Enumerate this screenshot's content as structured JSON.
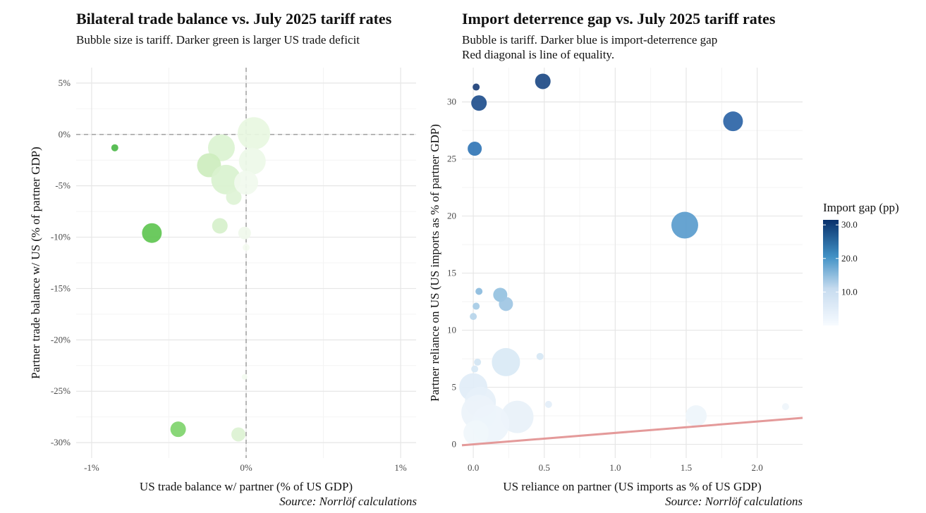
{
  "chart_data": [
    {
      "type": "scatter",
      "title": "Bilateral trade balance vs. July 2025 tariff rates",
      "subtitle": "Bubble size is tariff. Darker green is larger US trade deficit",
      "xlabel": "US trade balance w/ partner (% of US GDP)",
      "ylabel": "Partner trade balance w/ US (% of partner GDP)",
      "source": "Source: Norrlöf calculations",
      "xlim": [
        -1.1,
        1.1
      ],
      "ylim": [
        -31.5,
        6.5
      ],
      "xticks": [
        {
          "v": -1,
          "label": "-1%"
        },
        {
          "v": 0,
          "label": "0%"
        },
        {
          "v": 1,
          "label": "1%"
        }
      ],
      "yticks": [
        {
          "v": 5,
          "label": "5%"
        },
        {
          "v": 0,
          "label": "0%"
        },
        {
          "v": -5,
          "label": "-5%"
        },
        {
          "v": -10,
          "label": "-10%"
        },
        {
          "v": -15,
          "label": "-15%"
        },
        {
          "v": -20,
          "label": "-20%"
        },
        {
          "v": -25,
          "label": "-25%"
        },
        {
          "v": -30,
          "label": "-30%"
        }
      ],
      "reference_lines": {
        "x": 0,
        "y": 0,
        "style": "dashed"
      },
      "grid": true,
      "points": [
        {
          "x": -0.85,
          "y": -1.3,
          "size": 5,
          "color": "#4cb848"
        },
        {
          "x": -0.61,
          "y": -9.6,
          "size": 14,
          "color": "#5fc651"
        },
        {
          "x": -0.44,
          "y": -28.7,
          "size": 11,
          "color": "#7fd46c"
        },
        {
          "x": -0.05,
          "y": -29.2,
          "size": 10,
          "color": "#dcf2d2"
        },
        {
          "x": -0.17,
          "y": -8.9,
          "size": 11,
          "color": "#d6f0cb"
        },
        {
          "x": -0.16,
          "y": -1.3,
          "size": 19,
          "color": "#dbf3d1"
        },
        {
          "x": -0.24,
          "y": -3.0,
          "size": 17,
          "color": "#cdedbe"
        },
        {
          "x": -0.13,
          "y": -4.4,
          "size": 21,
          "color": "#d9f2cf"
        },
        {
          "x": -0.08,
          "y": -6.1,
          "size": 11,
          "color": "#def3d6"
        },
        {
          "x": 0.05,
          "y": 0.1,
          "size": 23,
          "color": "#e8f7e1"
        },
        {
          "x": 0.04,
          "y": -2.6,
          "size": 19,
          "color": "#edf8e8"
        },
        {
          "x": 0.0,
          "y": -4.7,
          "size": 17,
          "color": "#f1faee"
        },
        {
          "x": -0.01,
          "y": -9.6,
          "size": 9,
          "color": "#f0f9ec"
        },
        {
          "x": -0.01,
          "y": -23.6,
          "size": 4,
          "color": "#f3fbf0"
        },
        {
          "x": 0.0,
          "y": -11.0,
          "size": 5,
          "color": "#f4fbf1"
        }
      ]
    },
    {
      "type": "scatter",
      "title": "Import deterrence gap vs. July 2025 tariff rates",
      "subtitle_lines": [
        "Bubble is tariff. Darker blue is import-deterrence gap",
        "Red diagonal is line of equality."
      ],
      "xlabel": "US reliance on partner (US imports as % of US GDP)",
      "ylabel": "Partner reliance on US (US imports as % of partner GDP)",
      "source": "Source: Norrlöf calculations",
      "xlim": [
        -0.08,
        2.32
      ],
      "ylim": [
        -1.2,
        33.0
      ],
      "xticks": [
        {
          "v": 0,
          "label": "0.0"
        },
        {
          "v": 0.5,
          "label": "0.5"
        },
        {
          "v": 1.0,
          "label": "1.0"
        },
        {
          "v": 1.5,
          "label": "1.5"
        },
        {
          "v": 2.0,
          "label": "2.0"
        }
      ],
      "yticks": [
        {
          "v": 0,
          "label": "0"
        },
        {
          "v": 5,
          "label": "5"
        },
        {
          "v": 10,
          "label": "10"
        },
        {
          "v": 15,
          "label": "15"
        },
        {
          "v": 20,
          "label": "20"
        },
        {
          "v": 25,
          "label": "25"
        },
        {
          "v": 30,
          "label": "30"
        }
      ],
      "equality_line_color": "#e49a9a",
      "grid": true,
      "points": [
        {
          "x": 0.02,
          "y": 31.3,
          "size": 5,
          "color": "#1c3f78"
        },
        {
          "x": 0.49,
          "y": 31.8,
          "size": 11,
          "color": "#1d4a86"
        },
        {
          "x": 0.04,
          "y": 29.9,
          "size": 11,
          "color": "#1f4f8d"
        },
        {
          "x": 1.83,
          "y": 28.3,
          "size": 14,
          "color": "#2b64a6"
        },
        {
          "x": 0.01,
          "y": 25.9,
          "size": 10,
          "color": "#3276b6"
        },
        {
          "x": 1.49,
          "y": 19.2,
          "size": 19,
          "color": "#5a9ccd"
        },
        {
          "x": 0.04,
          "y": 13.4,
          "size": 5,
          "color": "#8bbbdd"
        },
        {
          "x": 0.19,
          "y": 13.1,
          "size": 10,
          "color": "#94c1e0"
        },
        {
          "x": 0.02,
          "y": 12.1,
          "size": 5,
          "color": "#a6cbe5"
        },
        {
          "x": 0.23,
          "y": 12.3,
          "size": 10,
          "color": "#9ec6e3"
        },
        {
          "x": 0.0,
          "y": 11.2,
          "size": 5,
          "color": "#b7d5ea"
        },
        {
          "x": 0.03,
          "y": 7.2,
          "size": 5,
          "color": "#d2e5f3"
        },
        {
          "x": 0.01,
          "y": 6.6,
          "size": 5,
          "color": "#d7e8f5"
        },
        {
          "x": 0.47,
          "y": 7.7,
          "size": 5,
          "color": "#d6e7f4"
        },
        {
          "x": 0.23,
          "y": 7.2,
          "size": 20,
          "color": "#d9e9f5"
        },
        {
          "x": 0.0,
          "y": 5.0,
          "size": 20,
          "color": "#e1edf7"
        },
        {
          "x": 0.05,
          "y": 3.7,
          "size": 22,
          "color": "#e6f0f9"
        },
        {
          "x": 0.04,
          "y": 2.8,
          "size": 25,
          "color": "#ebf3fa"
        },
        {
          "x": 0.31,
          "y": 2.4,
          "size": 23,
          "color": "#e8f1f9"
        },
        {
          "x": 0.53,
          "y": 3.5,
          "size": 5,
          "color": "#e3eef8"
        },
        {
          "x": 0.12,
          "y": 1.8,
          "size": 27,
          "color": "#edf4fb"
        },
        {
          "x": 1.57,
          "y": 2.5,
          "size": 15,
          "color": "#eef5fb"
        },
        {
          "x": 2.2,
          "y": 3.3,
          "size": 5,
          "color": "#eff5fb"
        },
        {
          "x": 0.02,
          "y": 1.0,
          "size": 18,
          "color": "#f0f6fb"
        }
      ],
      "legend": {
        "title": "Import gap (pp)",
        "placement": "right",
        "min": 0,
        "max": 31.5,
        "ticks": [
          {
            "v": 30,
            "label": "30.0"
          },
          {
            "v": 20,
            "label": "20.0"
          },
          {
            "v": 10,
            "label": "10.0"
          }
        ],
        "color_low": "#f7fbff",
        "color_high": "#08306b"
      }
    }
  ]
}
